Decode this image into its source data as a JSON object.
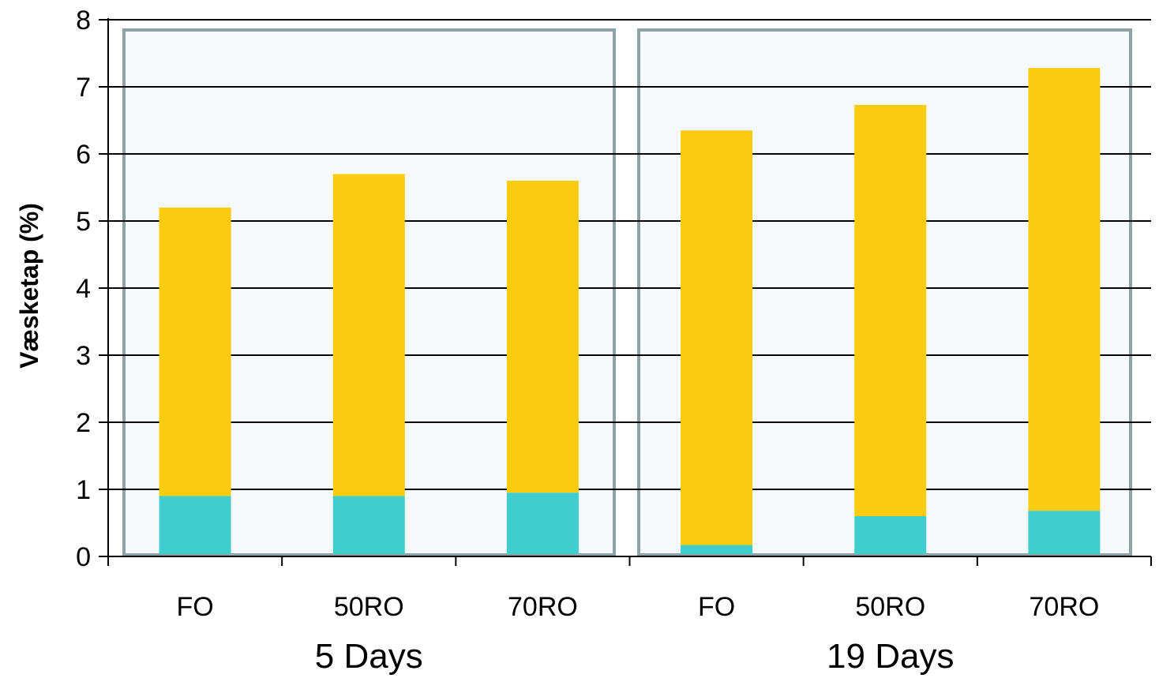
{
  "chart_data": {
    "type": "bar",
    "stacked": true,
    "ylabel": "Væsketap (%)",
    "xlabel": "",
    "ylim": [
      0,
      8
    ],
    "yticks": [
      0,
      1,
      2,
      3,
      4,
      5,
      6,
      7,
      8
    ],
    "grid": true,
    "groups": [
      {
        "label": "5 Days",
        "categories": [
          "FO",
          "50RO",
          "70RO"
        ],
        "bottom": [
          0.9,
          0.9,
          0.95
        ],
        "total": [
          5.2,
          5.7,
          5.6
        ]
      },
      {
        "label": "19 Days",
        "categories": [
          "FO",
          "50RO",
          "70RO"
        ],
        "bottom": [
          0.17,
          0.6,
          0.68
        ],
        "total": [
          6.35,
          6.73,
          7.28
        ]
      }
    ],
    "series": [
      {
        "color": "#40cdcd"
      },
      {
        "color": "#facb0f"
      }
    ],
    "panel_fill": "#f6f9fa",
    "panel_border": "#8fa3a6"
  }
}
